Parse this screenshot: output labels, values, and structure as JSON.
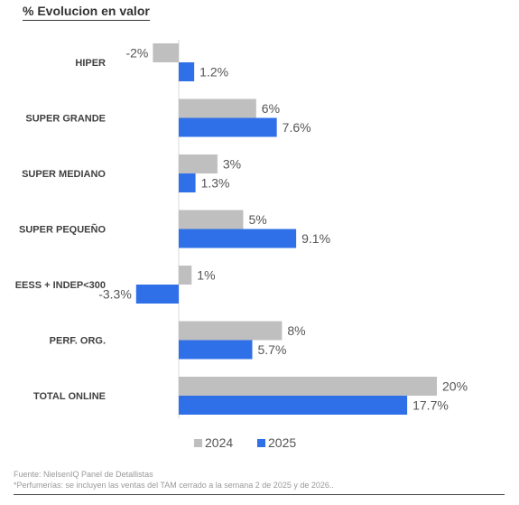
{
  "chart_data": {
    "type": "bar",
    "orientation": "horizontal",
    "title": "% Evolucion en valor",
    "categories": [
      "HIPER",
      "SUPER GRANDE",
      "SUPER MEDIANO",
      "SUPER PEQUEÑO",
      "EESS + INDEP<300",
      "PERF. ORG.",
      "TOTAL ONLINE"
    ],
    "series": [
      {
        "name": "2024",
        "color": "#bfbfbf",
        "values": [
          -2,
          6,
          3,
          5,
          1,
          8,
          20
        ],
        "labels": [
          "-2%",
          "6%",
          "3%",
          "5%",
          "1%",
          "8%",
          "20%"
        ]
      },
      {
        "name": "2025",
        "color": "#2f6fe8",
        "values": [
          1.2,
          7.6,
          1.3,
          9.1,
          -3.3,
          5.7,
          17.7
        ],
        "labels": [
          "1.2%",
          "7.6%",
          "1.3%",
          "9.1%",
          "-3.3%",
          "5.7%",
          "17.7%"
        ]
      }
    ],
    "legend_position": "bottom",
    "grid": false
  },
  "footnotes": {
    "source": "Fuente: NielsenIQ Panel de Detallistas",
    "note": "*Perfumerías: se incluyen las ventas del TAM cerrado a la semana 2 de 2025 y de 2026.."
  }
}
